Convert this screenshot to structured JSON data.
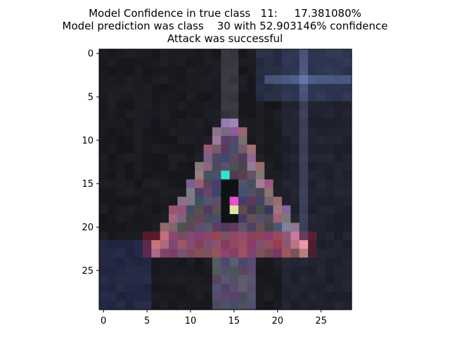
{
  "title": {
    "line1": "Model Confidence in true class   11:     17.381080%",
    "line2": "Model prediction was class    30 with 52.903146% confidence",
    "line3": "Attack was successful"
  },
  "image": {
    "rows": 30,
    "cols": 29,
    "background_color": "#1b1b20",
    "adversarial_pixels": [
      {
        "row": 14,
        "col": 14,
        "color": "#2ee6c8"
      },
      {
        "row": 17,
        "col": 15,
        "color": "#f04ad0"
      },
      {
        "row": 18,
        "col": 15,
        "color": "#d8e8a0"
      }
    ]
  },
  "axes": {
    "x_ticks": [
      "0",
      "5",
      "10",
      "15",
      "20",
      "25"
    ],
    "y_ticks": [
      "0",
      "5",
      "10",
      "15",
      "20",
      "25"
    ]
  }
}
